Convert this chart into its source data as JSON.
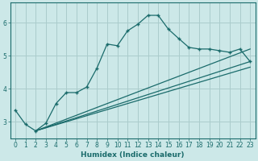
{
  "xlabel": "Humidex (Indice chaleur)",
  "background_color": "#cce8e8",
  "grid_color": "#aacccc",
  "line_color": "#1a6b6b",
  "xlim": [
    -0.5,
    23.5
  ],
  "ylim": [
    2.5,
    6.6
  ],
  "yticks": [
    3,
    4,
    5,
    6
  ],
  "xticks": [
    0,
    1,
    2,
    3,
    4,
    5,
    6,
    7,
    8,
    9,
    10,
    11,
    12,
    13,
    14,
    15,
    16,
    17,
    18,
    19,
    20,
    21,
    22,
    23
  ],
  "main_x": [
    0,
    1,
    2,
    3,
    4,
    5,
    6,
    7,
    8,
    9,
    10,
    11,
    12,
    13,
    14,
    15,
    16,
    17,
    18,
    19,
    20,
    21,
    22,
    23
  ],
  "main_y": [
    3.35,
    2.92,
    2.72,
    2.95,
    3.55,
    3.88,
    3.88,
    4.05,
    4.62,
    5.35,
    5.3,
    5.75,
    5.95,
    6.22,
    6.22,
    5.8,
    5.52,
    5.25,
    5.2,
    5.2,
    5.15,
    5.1,
    5.2,
    4.82
  ],
  "line1_x": [
    2,
    23
  ],
  "line1_y": [
    2.72,
    4.82
  ],
  "line2_x": [
    2,
    23
  ],
  "line2_y": [
    2.72,
    4.65
  ],
  "line3_x": [
    2,
    23
  ],
  "line3_y": [
    2.72,
    5.2
  ]
}
